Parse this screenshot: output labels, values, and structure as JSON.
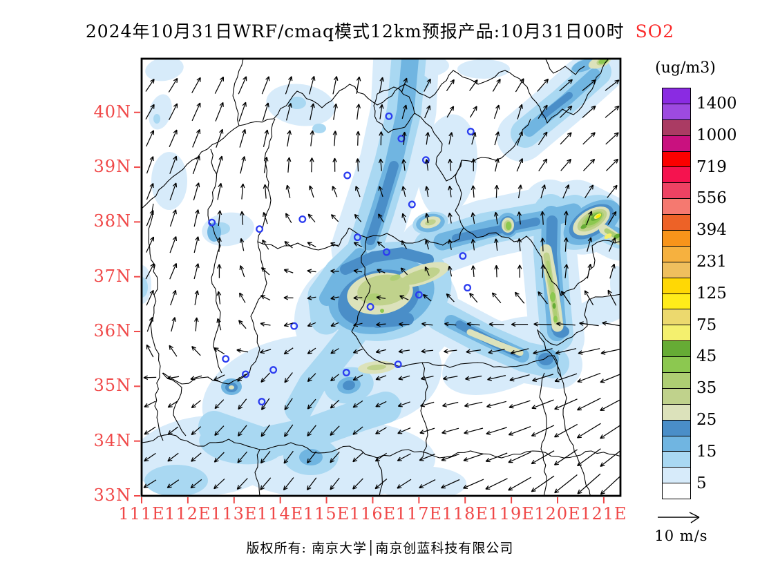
{
  "title": {
    "text": "2024年10月31日WRF/cmaq模式12km预报产品:10月31日00时",
    "pollutant": "SO2",
    "pollutant_color": "#fb2a2a"
  },
  "colorbar": {
    "unit": "(ug/m3)",
    "boxes": [
      {
        "color": "#8a2be2",
        "label": "1400"
      },
      {
        "color": "#9d4ae0",
        "label": ""
      },
      {
        "color": "#aa3b63",
        "label": "1000"
      },
      {
        "color": "#c9117f",
        "label": ""
      },
      {
        "color": "#fb0000",
        "label": "719"
      },
      {
        "color": "#f5134f",
        "label": ""
      },
      {
        "color": "#ee4263",
        "label": "556"
      },
      {
        "color": "#f57970",
        "label": ""
      },
      {
        "color": "#ed6227",
        "label": "394"
      },
      {
        "color": "#f8941a",
        "label": ""
      },
      {
        "color": "#f6b13f",
        "label": "231"
      },
      {
        "color": "#efbf5e",
        "label": ""
      },
      {
        "color": "#ffd805",
        "label": "125"
      },
      {
        "color": "#ffec1a",
        "label": ""
      },
      {
        "color": "#ecd96e",
        "label": "75"
      },
      {
        "color": "#f4f06e",
        "label": ""
      },
      {
        "color": "#66ac35",
        "label": "45"
      },
      {
        "color": "#8cc850",
        "label": ""
      },
      {
        "color": "#aece73",
        "label": "35"
      },
      {
        "color": "#c0d28c",
        "label": ""
      },
      {
        "color": "#dce2bb",
        "label": "25"
      },
      {
        "color": "#4a8ec8",
        "label": ""
      },
      {
        "color": "#70b5e1",
        "label": "15"
      },
      {
        "color": "#a9d8f2",
        "label": ""
      },
      {
        "color": "#d7ebfa",
        "label": "5"
      },
      {
        "color": "#ffffff",
        "label": ""
      }
    ]
  },
  "axes": {
    "color": "#f04848",
    "lat": [
      {
        "label": "40N",
        "value": 40
      },
      {
        "label": "39N",
        "value": 39
      },
      {
        "label": "38N",
        "value": 38
      },
      {
        "label": "37N",
        "value": 37
      },
      {
        "label": "36N",
        "value": 36
      },
      {
        "label": "35N",
        "value": 35
      },
      {
        "label": "34N",
        "value": 34
      },
      {
        "label": "33N",
        "value": 33
      }
    ],
    "lon": [
      {
        "label": "111E",
        "value": 111
      },
      {
        "label": "112E",
        "value": 112
      },
      {
        "label": "113E",
        "value": 113
      },
      {
        "label": "114E",
        "value": 114
      },
      {
        "label": "115E",
        "value": 115
      },
      {
        "label": "116E",
        "value": 116
      },
      {
        "label": "117E",
        "value": 117
      },
      {
        "label": "118E",
        "value": 118
      },
      {
        "label": "119E",
        "value": 119
      },
      {
        "label": "120E",
        "value": 120
      },
      {
        "label": "121E",
        "value": 121
      }
    ]
  },
  "wind_legend": {
    "label": "10 m/s"
  },
  "footer": {
    "text": "版权所有: 南京大学│南京创蓝科技有限公司"
  },
  "map": {
    "lon_min": 111,
    "lon_max": 121.36,
    "lat_min": 33,
    "lat_max": 40.98,
    "city_marker_color": "#2b3cf0",
    "cities": [
      [
        116.35,
        39.93
      ],
      [
        116.62,
        39.52
      ],
      [
        117.15,
        39.13
      ],
      [
        118.12,
        39.65
      ],
      [
        115.45,
        38.85
      ],
      [
        116.85,
        38.32
      ],
      [
        114.48,
        38.05
      ],
      [
        113.55,
        37.87
      ],
      [
        112.52,
        37.99
      ],
      [
        115.67,
        37.72
      ],
      [
        116.3,
        37.45
      ],
      [
        117.95,
        37.38
      ],
      [
        117.0,
        36.67
      ],
      [
        118.05,
        36.8
      ],
      [
        115.95,
        36.45
      ],
      [
        115.43,
        35.25
      ],
      [
        116.55,
        35.4
      ],
      [
        114.3,
        36.1
      ],
      [
        113.85,
        35.3
      ],
      [
        113.25,
        35.22
      ],
      [
        113.6,
        34.72
      ],
      [
        112.82,
        35.5
      ]
    ],
    "wind_grid": {
      "lons": [
        111,
        112,
        113,
        114,
        115,
        116,
        117,
        118,
        119,
        120,
        121
      ],
      "lats": [
        41,
        40,
        39,
        38,
        37,
        36,
        35,
        34,
        33
      ],
      "angles": [
        [
          50,
          55,
          60,
          65,
          75,
          80,
          60,
          50,
          45,
          40,
          35
        ],
        [
          60,
          65,
          70,
          75,
          80,
          85,
          70,
          55,
          80,
          45,
          40
        ],
        [
          70,
          70,
          75,
          85,
          90,
          95,
          100,
          95,
          70,
          50,
          45
        ],
        [
          65,
          75,
          90,
          120,
          140,
          130,
          100,
          100,
          100,
          95,
          60
        ],
        [
          60,
          70,
          100,
          160,
          185,
          170,
          120,
          95,
          90,
          85,
          75
        ],
        [
          70,
          80,
          120,
          200,
          210,
          190,
          180,
          185,
          195,
          190,
          185
        ],
        [
          200,
          215,
          230,
          240,
          225,
          205,
          195,
          190,
          195,
          200,
          205
        ],
        [
          215,
          220,
          230,
          235,
          230,
          215,
          200,
          195,
          200,
          210,
          215
        ],
        [
          210,
          215,
          225,
          230,
          235,
          225,
          210,
          205,
          210,
          220,
          225
        ]
      ],
      "lengths": [
        [
          18,
          22,
          26,
          28,
          30,
          26,
          22,
          20,
          22,
          26,
          24
        ],
        [
          24,
          28,
          30,
          26,
          24,
          22,
          20,
          18,
          22,
          24,
          26
        ],
        [
          26,
          28,
          26,
          22,
          20,
          18,
          16,
          18,
          20,
          22,
          24
        ],
        [
          24,
          26,
          20,
          16,
          14,
          14,
          14,
          16,
          18,
          20,
          22
        ],
        [
          26,
          24,
          18,
          14,
          12,
          12,
          14,
          16,
          18,
          20,
          22
        ],
        [
          22,
          20,
          16,
          14,
          12,
          14,
          16,
          18,
          24,
          28,
          30
        ],
        [
          18,
          16,
          18,
          20,
          16,
          16,
          18,
          24,
          30,
          34,
          38
        ],
        [
          20,
          18,
          20,
          22,
          20,
          18,
          22,
          28,
          34,
          38,
          42
        ],
        [
          22,
          20,
          22,
          24,
          22,
          22,
          26,
          32,
          38,
          42,
          46
        ]
      ]
    }
  }
}
